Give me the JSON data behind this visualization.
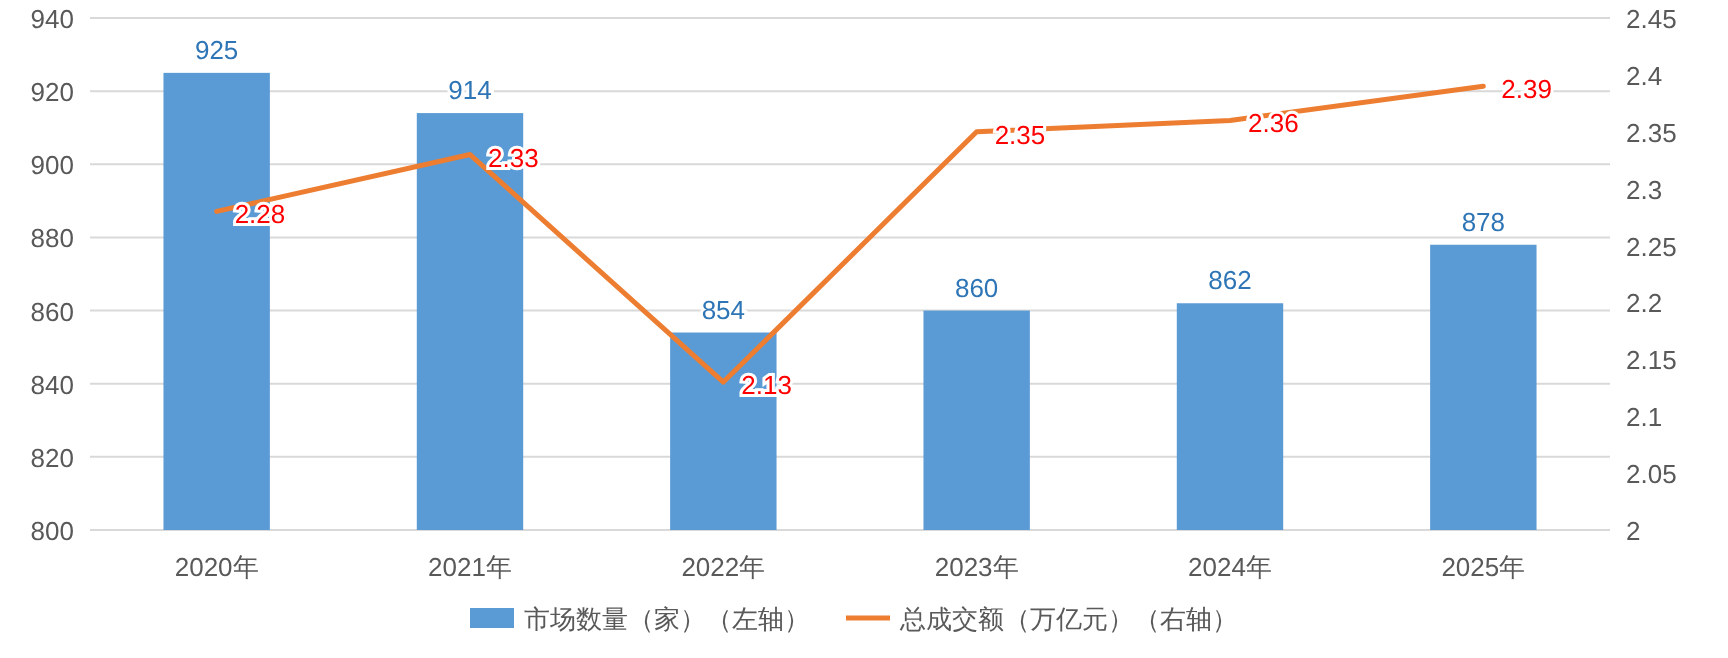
{
  "chart_data": {
    "type": "bar",
    "categories": [
      "2020年",
      "2021年",
      "2022年",
      "2023年",
      "2024年",
      "2025年"
    ],
    "series": [
      {
        "name": "市场数量（家）（左轴）",
        "color": "#5b9bd5",
        "values": [
          925,
          914,
          854,
          860,
          862,
          878
        ]
      },
      {
        "name": "总成交额（万亿元）（右轴）",
        "type": "line",
        "axis": "y2",
        "color": "#ed7d31",
        "values": [
          2.28,
          2.33,
          2.13,
          2.35,
          2.36,
          2.39
        ]
      }
    ],
    "ylim": [
      800,
      940
    ],
    "yticks": [
      800,
      820,
      840,
      860,
      880,
      900,
      920,
      940
    ],
    "y2lim": [
      2,
      2.45
    ],
    "y2ticks": [
      2,
      2.05,
      2.1,
      2.15,
      2.2,
      2.25,
      2.3,
      2.35,
      2.4,
      2.45
    ],
    "data_labels": true,
    "grid": "y",
    "legend": "bottom",
    "marker": "none",
    "line_style": "solid"
  }
}
